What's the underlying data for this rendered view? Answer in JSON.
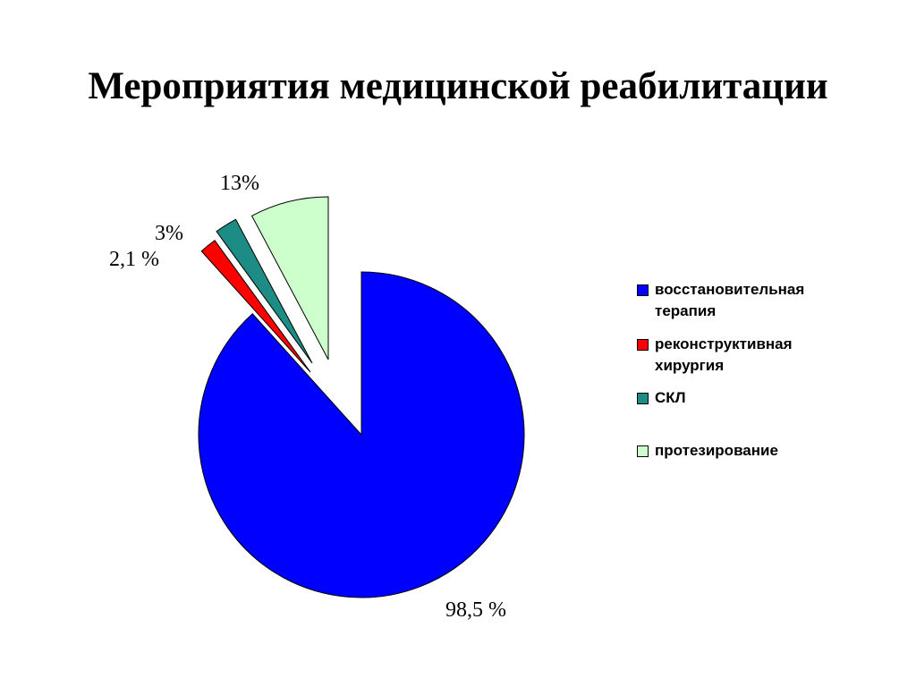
{
  "slide": {
    "title": "Мероприятия медицинской реабилитации"
  },
  "chart_data": {
    "type": "pie",
    "title": "Мероприятия медицинской реабилитации",
    "legend_position": "right",
    "slices": [
      {
        "name": "восстановительная терапия",
        "value": 98.5,
        "label": "98,5 %",
        "color": "#0000FF"
      },
      {
        "name": "реконструктивная хирургия",
        "value": 2.1,
        "label": "2,1 %",
        "color": "#FF0000"
      },
      {
        "name": "СКЛ",
        "value": 3,
        "label": "3%",
        "color": "#1C8C84"
      },
      {
        "name": "протезирование",
        "value": 13,
        "label": "13%",
        "color": "#CCFFCC"
      }
    ]
  }
}
